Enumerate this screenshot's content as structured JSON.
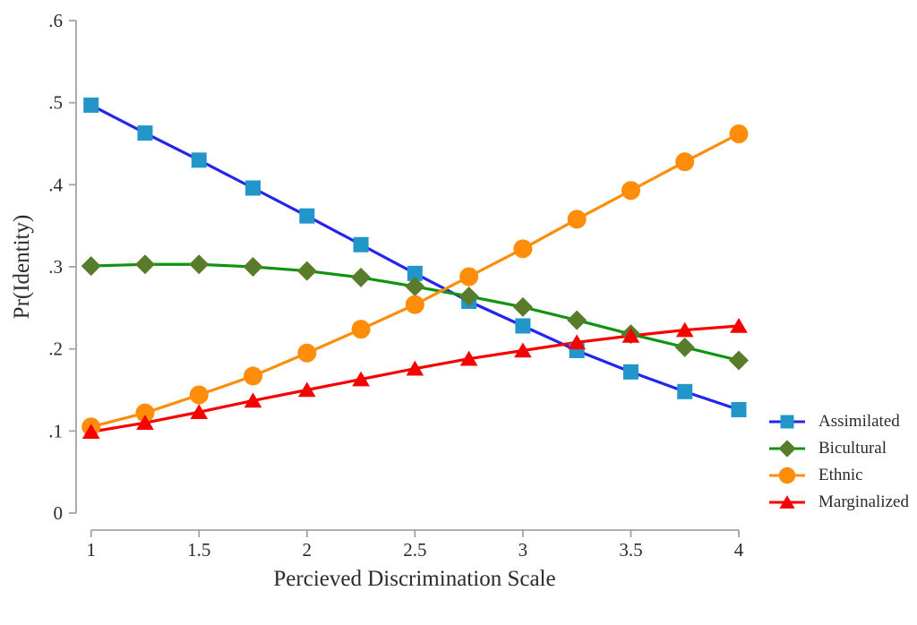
{
  "chart_data": {
    "type": "line",
    "title": "",
    "xlabel": "Percieved Discrimination Scale",
    "ylabel": "Pr(Identity)",
    "xlim": [
      1,
      4
    ],
    "ylim": [
      0,
      0.6
    ],
    "grid": false,
    "legend_position": "bottom-right",
    "x": [
      1,
      1.25,
      1.5,
      1.75,
      2,
      2.25,
      2.5,
      2.75,
      3,
      3.25,
      3.5,
      3.75,
      4
    ],
    "x_tick_values": [
      1,
      1.5,
      2,
      2.5,
      3,
      3.5,
      4
    ],
    "x_tick_labels": [
      "1",
      "1.5",
      "2",
      "2.5",
      "3",
      "3.5",
      "4"
    ],
    "y_tick_values": [
      0,
      0.1,
      0.2,
      0.3,
      0.4,
      0.5,
      0.6
    ],
    "y_tick_labels": [
      "0",
      ".1",
      ".2",
      ".3",
      ".4",
      ".5",
      ".6"
    ],
    "series": [
      {
        "name": "Assimilated",
        "marker": "square",
        "line_color": "#2424ee",
        "marker_color": "#2396c9",
        "values": [
          0.497,
          0.463,
          0.43,
          0.396,
          0.362,
          0.327,
          0.292,
          0.258,
          0.228,
          0.198,
          0.172,
          0.148,
          0.126
        ]
      },
      {
        "name": "Bicultural",
        "marker": "diamond",
        "line_color": "#109410",
        "marker_color": "#587c2c",
        "values": [
          0.301,
          0.303,
          0.303,
          0.3,
          0.295,
          0.287,
          0.276,
          0.264,
          0.251,
          0.235,
          0.218,
          0.202,
          0.186
        ]
      },
      {
        "name": "Ethnic",
        "marker": "circle",
        "line_color": "#ff8d0a",
        "marker_color": "#ff8d0a",
        "values": [
          0.105,
          0.122,
          0.144,
          0.167,
          0.195,
          0.224,
          0.254,
          0.288,
          0.322,
          0.358,
          0.393,
          0.428,
          0.462
        ]
      },
      {
        "name": "Marginalized",
        "marker": "triangle",
        "line_color": "#f60000",
        "marker_color": "#f60000",
        "values": [
          0.099,
          0.11,
          0.123,
          0.137,
          0.15,
          0.163,
          0.176,
          0.188,
          0.198,
          0.208,
          0.216,
          0.223,
          0.228
        ]
      }
    ],
    "colors": {
      "background": "#ffffff",
      "axis": "#a3a3a3",
      "text": "#2b2b2b"
    }
  }
}
